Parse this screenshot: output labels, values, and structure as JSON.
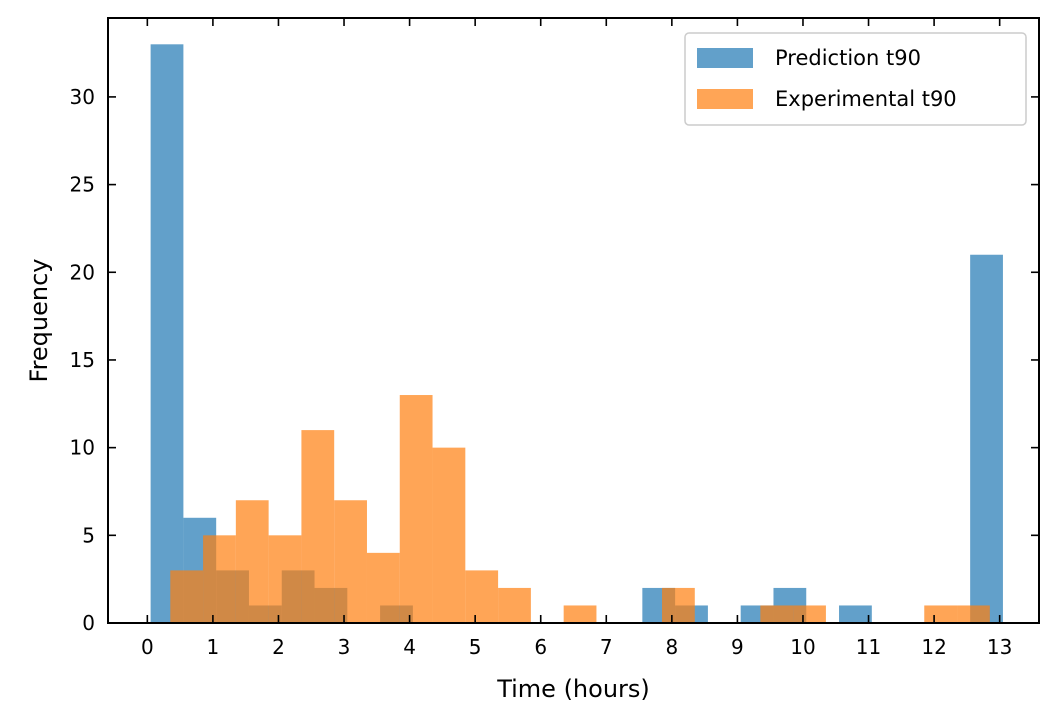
{
  "chart_data": {
    "type": "histogram",
    "xlabel": "Time (hours)",
    "ylabel": "Frequency",
    "xlim": [
      -0.6,
      13.6
    ],
    "ylim": [
      0,
      34.5
    ],
    "xticks": [
      0,
      1,
      2,
      3,
      4,
      5,
      6,
      7,
      8,
      9,
      10,
      11,
      12,
      13
    ],
    "yticks": [
      0,
      5,
      10,
      15,
      20,
      25,
      30
    ],
    "grid": false,
    "legend_position": "top-right",
    "series": [
      {
        "name": "Prediction t90",
        "color": "#1f77b4",
        "opacity": 0.7,
        "bin_start": 0.05,
        "bin_width": 0.5,
        "counts": [
          33,
          6,
          3,
          1,
          3,
          2,
          0,
          1,
          0,
          0,
          0,
          0,
          0,
          0,
          0,
          2,
          1,
          0,
          1,
          2,
          0,
          1,
          0,
          0,
          0,
          21
        ]
      },
      {
        "name": "Experimental t90",
        "color": "#ff7f0e",
        "opacity": 0.7,
        "bin_start": 0.35,
        "bin_width": 0.5,
        "counts": [
          3,
          5,
          7,
          5,
          11,
          7,
          4,
          13,
          10,
          3,
          2,
          0,
          1,
          0,
          0,
          2,
          0,
          0,
          1,
          1,
          0,
          0,
          0,
          1,
          1
        ]
      }
    ]
  }
}
